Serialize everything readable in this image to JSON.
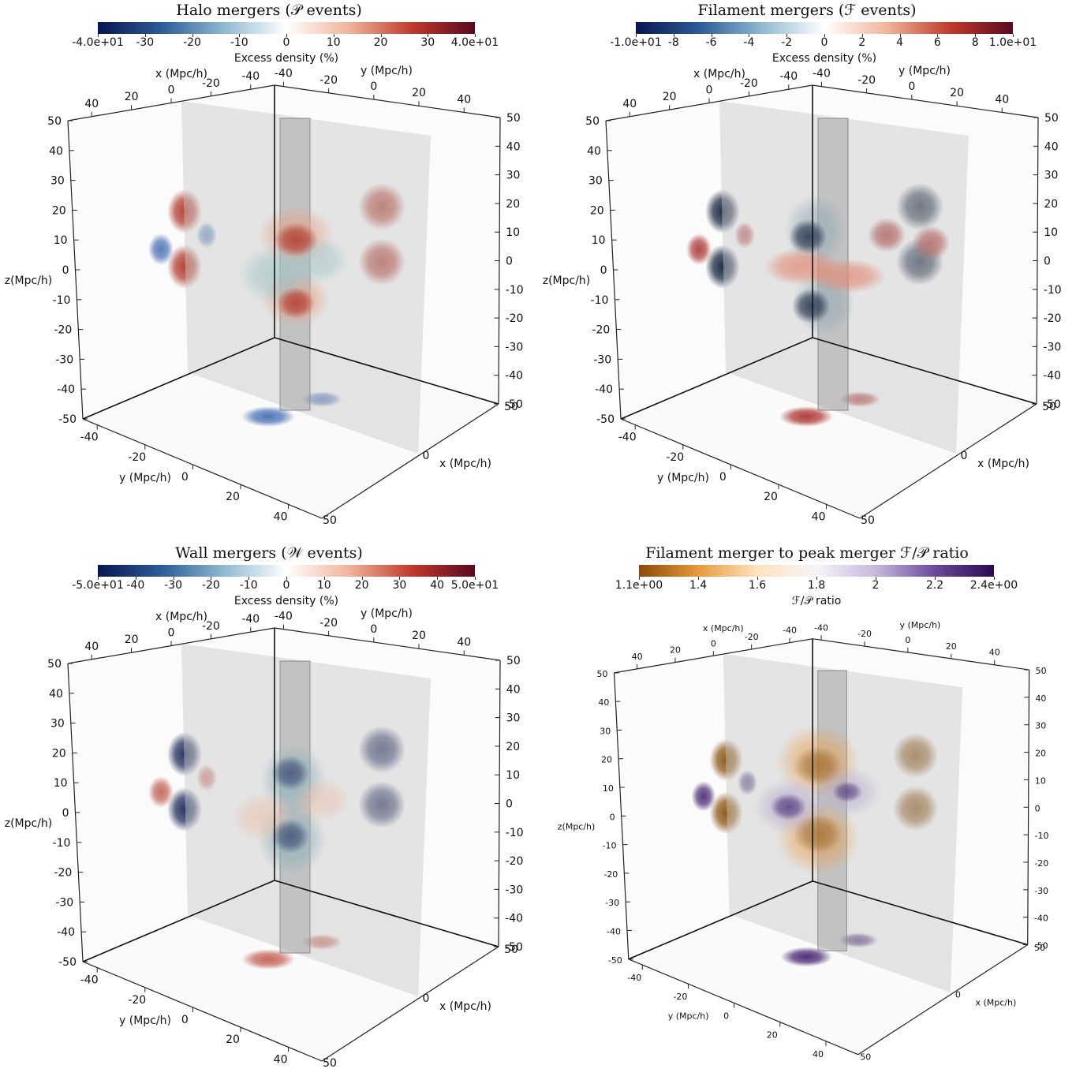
{
  "panels": [
    {
      "title": "Halo mergers (𝒫 events)",
      "colorbar": {
        "title": "Excess density (%)",
        "ticks": [
          "-4.0e+01",
          "-30",
          "-20",
          "-10",
          "0",
          "10",
          "20",
          "30",
          "4.0e+01"
        ],
        "stops": [
          "#0a1650",
          "#2c5a96",
          "#8fb8d0",
          "#ffffff",
          "#f1b49a",
          "#bf3a2c",
          "#5a0a20"
        ]
      },
      "axes": {
        "x_label": "x (Mpc/h)",
        "y_label": "y (Mpc/h)",
        "z_label": "z(Mpc/h)",
        "z_ticks": [
          "50",
          "40",
          "30",
          "20",
          "10",
          "0",
          "-10",
          "-20",
          "-30",
          "-40",
          "-50"
        ],
        "right_ticks": [
          "50",
          "40",
          "30",
          "20",
          "10",
          "0",
          "-10",
          "-20",
          "-30",
          "-40",
          "-50"
        ],
        "top_x_ticks": [
          "40",
          "20",
          "0",
          "-20",
          "-40"
        ],
        "top_y_ticks": [
          "-40",
          "-20",
          "0",
          "20",
          "40"
        ],
        "bottom_y_ticks": [
          "-40",
          "-20",
          "0",
          "20",
          "40"
        ],
        "bottom_x_ticks": [
          "50",
          "0",
          "50"
        ]
      },
      "blob_colors": {
        "positive": "#b13a2e",
        "negative": "#3d67b0",
        "shell_pos": "#e3a58a",
        "shell_neg": "#9fc2c8"
      }
    },
    {
      "title": "Filament mergers (ℱ events)",
      "colorbar": {
        "title": "Excess density (%)",
        "ticks": [
          "-1.0e+01",
          "-8",
          "-6",
          "-4",
          "-2",
          "0",
          "2",
          "4",
          "6",
          "8",
          "1.0e+01"
        ],
        "stops": [
          "#0a1650",
          "#2c5a96",
          "#8fb8d0",
          "#ffffff",
          "#f1b49a",
          "#bf3a2c",
          "#5a0a20"
        ]
      },
      "axes": {
        "x_label": "x (Mpc/h)",
        "y_label": "y (Mpc/h)",
        "z_label": "z(Mpc/h)",
        "z_ticks": [
          "50",
          "40",
          "30",
          "20",
          "10",
          "0",
          "-10",
          "-20",
          "-30",
          "-40",
          "-50"
        ],
        "right_ticks": [
          "50",
          "40",
          "30",
          "20",
          "10",
          "0",
          "-10",
          "-20",
          "-30",
          "-40",
          "-50"
        ],
        "top_x_ticks": [
          "40",
          "20",
          "0",
          "-20",
          "-40"
        ],
        "top_y_ticks": [
          "-40",
          "-20",
          "0",
          "20",
          "40"
        ],
        "bottom_y_ticks": [
          "-40",
          "-20",
          "0",
          "20",
          "40"
        ],
        "bottom_x_ticks": [
          "50",
          "0",
          "50"
        ]
      },
      "blob_colors": {
        "positive": "#a62a26",
        "negative": "#13233d",
        "shell_pos": "#e08a74",
        "shell_neg": "#8ea7b4"
      }
    },
    {
      "title": "Wall mergers (𝒲 events)",
      "colorbar": {
        "title": "Excess density (%)",
        "ticks": [
          "-5.0e+01",
          "-40",
          "-30",
          "-20",
          "-10",
          "0",
          "10",
          "20",
          "30",
          "40",
          "5.0e+01"
        ],
        "stops": [
          "#0a1650",
          "#2c5a96",
          "#8fb8d0",
          "#ffffff",
          "#f1b49a",
          "#bf3a2c",
          "#5a0a20"
        ]
      },
      "axes": {
        "x_label": "x (Mpc/h)",
        "y_label": "y (Mpc/h)",
        "z_label": "z(Mpc/h)",
        "z_ticks": [
          "50",
          "40",
          "30",
          "20",
          "10",
          "0",
          "-10",
          "-20",
          "-30",
          "-40",
          "-50"
        ],
        "right_ticks": [
          "50",
          "40",
          "30",
          "20",
          "10",
          "0",
          "-10",
          "-20",
          "-30",
          "-40",
          "-50"
        ],
        "top_x_ticks": [
          "40",
          "20",
          "0",
          "-20",
          "-40"
        ],
        "top_y_ticks": [
          "-40",
          "-20",
          "0",
          "20",
          "40"
        ],
        "bottom_y_ticks": [
          "-40",
          "-20",
          "0",
          "20",
          "40"
        ],
        "bottom_x_ticks": [
          "50",
          "0",
          "50"
        ]
      },
      "blob_colors": {
        "positive": "#c0594c",
        "negative": "#1e2a5a",
        "shell_pos": "#e8c0aa",
        "shell_neg": "#8fb2bc"
      }
    },
    {
      "title": "Filament merger to peak merger ℱ/𝒫 ratio",
      "colorbar": {
        "title": "ℱ/𝒫 ratio",
        "ticks": [
          "1.1e+00",
          "1.4",
          "1.6",
          "1.8",
          "2",
          "2.2",
          "2.4e+00"
        ],
        "stops": [
          "#8a4a08",
          "#e89a3c",
          "#fde3c0",
          "#f6f4f8",
          "#c6b8dc",
          "#6a4a9a",
          "#2a0a50"
        ]
      },
      "axes": {
        "x_label": "x (Mpc/h)",
        "y_label": "y (Mpc/h)",
        "z_label": "z(Mpc/h)",
        "z_ticks": [
          "50",
          "40",
          "30",
          "20",
          "10",
          "0",
          "-10",
          "-20",
          "-30",
          "-40",
          "-50"
        ],
        "right_ticks": [
          "50",
          "40",
          "30",
          "20",
          "10",
          "0",
          "-10",
          "-20",
          "-30",
          "-40",
          "-50"
        ],
        "top_x_ticks": [
          "40",
          "20",
          "0",
          "-20",
          "-40"
        ],
        "top_y_ticks": [
          "-40",
          "-20",
          "0",
          "20",
          "40"
        ],
        "bottom_y_ticks": [
          "-40",
          "-20",
          "0",
          "20",
          "40"
        ],
        "bottom_x_ticks": [
          "50",
          "0",
          "50"
        ]
      },
      "blob_colors": {
        "positive": "#8a5210",
        "negative": "#3a1a6a",
        "shell_pos": "#e6a050",
        "shell_neg": "#b2a6c8"
      }
    }
  ]
}
